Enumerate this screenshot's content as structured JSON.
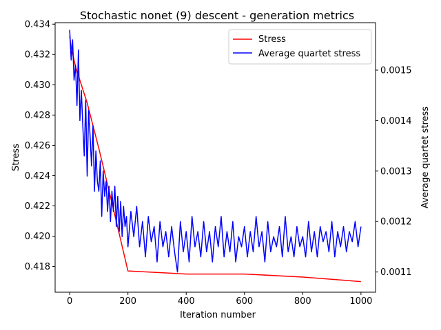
{
  "chart_data": {
    "type": "line",
    "title": "Stochastic nonet (9) descent - generation metrics",
    "xlabel": "Iteration number",
    "ylabel": "Stress",
    "ylabel_right": "Average quartet stress",
    "xlim": [
      -50,
      1050
    ],
    "ylim_left": [
      0.4163,
      0.4341
    ],
    "ylim_right": [
      0.00106,
      0.001594
    ],
    "xticks": [
      0,
      200,
      400,
      600,
      800,
      1000
    ],
    "yticks_left": [
      0.418,
      0.42,
      0.422,
      0.424,
      0.426,
      0.428,
      0.43,
      0.432,
      0.434
    ],
    "yticks_right": [
      0.0011,
      0.0012,
      0.0013,
      0.0014,
      0.0015
    ],
    "ytick_labels_left": [
      "0.418",
      "0.420",
      "0.422",
      "0.424",
      "0.426",
      "0.428",
      "0.430",
      "0.432",
      "0.434"
    ],
    "ytick_labels_right": [
      "0.0011",
      "0.0012",
      "0.0013",
      "0.0014",
      "0.0015"
    ],
    "grid": false,
    "legend_position": "top-right",
    "series": [
      {
        "name": "Stress",
        "axis": "left",
        "color": "#ff0000",
        "x": [
          0,
          5,
          20,
          60,
          100,
          150,
          200,
          400,
          600,
          800,
          1000
        ],
        "y": [
          0.4332,
          0.4325,
          0.4312,
          0.4288,
          0.4258,
          0.4218,
          0.4177,
          0.4175,
          0.4175,
          0.4173,
          0.417
        ]
      },
      {
        "name": "Average quartet stress",
        "axis": "right",
        "color": "#0000ff",
        "x": [
          0,
          5,
          10,
          15,
          20,
          25,
          30,
          35,
          40,
          45,
          50,
          55,
          60,
          65,
          70,
          75,
          80,
          85,
          90,
          95,
          100,
          105,
          110,
          115,
          120,
          125,
          130,
          135,
          140,
          145,
          150,
          155,
          160,
          165,
          170,
          175,
          180,
          185,
          190,
          195,
          200,
          210,
          220,
          230,
          240,
          250,
          260,
          270,
          280,
          290,
          300,
          310,
          320,
          330,
          340,
          350,
          360,
          370,
          380,
          390,
          400,
          410,
          420,
          430,
          440,
          450,
          460,
          470,
          480,
          490,
          500,
          510,
          520,
          530,
          540,
          550,
          560,
          570,
          580,
          590,
          600,
          610,
          620,
          630,
          640,
          650,
          660,
          670,
          680,
          690,
          700,
          710,
          720,
          730,
          740,
          750,
          760,
          770,
          780,
          790,
          800,
          810,
          820,
          830,
          840,
          850,
          860,
          870,
          880,
          890,
          900,
          910,
          920,
          930,
          940,
          950,
          960,
          970,
          980,
          990,
          1000
        ],
        "y": [
          0.00158,
          0.00152,
          0.00156,
          0.00148,
          0.00151,
          0.00143,
          0.00154,
          0.0014,
          0.00146,
          0.00139,
          0.00133,
          0.00144,
          0.00129,
          0.00142,
          0.00137,
          0.00131,
          0.00139,
          0.00126,
          0.00134,
          0.00128,
          0.00126,
          0.00132,
          0.00121,
          0.0013,
          0.00125,
          0.00128,
          0.00122,
          0.00127,
          0.0012,
          0.00126,
          0.00122,
          0.00127,
          0.00119,
          0.00125,
          0.00118,
          0.00124,
          0.00117,
          0.00123,
          0.00119,
          0.00121,
          0.00115,
          0.00122,
          0.00117,
          0.00123,
          0.00115,
          0.0012,
          0.00113,
          0.00121,
          0.00116,
          0.00119,
          0.00112,
          0.0012,
          0.00115,
          0.00118,
          0.00113,
          0.00119,
          0.00114,
          0.0011,
          0.0012,
          0.00114,
          0.00118,
          0.00112,
          0.00121,
          0.00115,
          0.00118,
          0.00113,
          0.0012,
          0.00114,
          0.00118,
          0.00112,
          0.00119,
          0.00115,
          0.00121,
          0.00113,
          0.00118,
          0.00114,
          0.0012,
          0.00112,
          0.00117,
          0.00115,
          0.00119,
          0.00113,
          0.00118,
          0.00114,
          0.00121,
          0.00115,
          0.00118,
          0.00112,
          0.0012,
          0.00114,
          0.00117,
          0.00115,
          0.00119,
          0.00113,
          0.00121,
          0.00114,
          0.00117,
          0.00113,
          0.00119,
          0.00115,
          0.00117,
          0.00113,
          0.0012,
          0.00114,
          0.00118,
          0.00113,
          0.00119,
          0.00116,
          0.00118,
          0.00114,
          0.0012,
          0.00113,
          0.00118,
          0.00115,
          0.00119,
          0.00114,
          0.00118,
          0.00116,
          0.0012,
          0.00115,
          0.00119
        ]
      }
    ]
  }
}
